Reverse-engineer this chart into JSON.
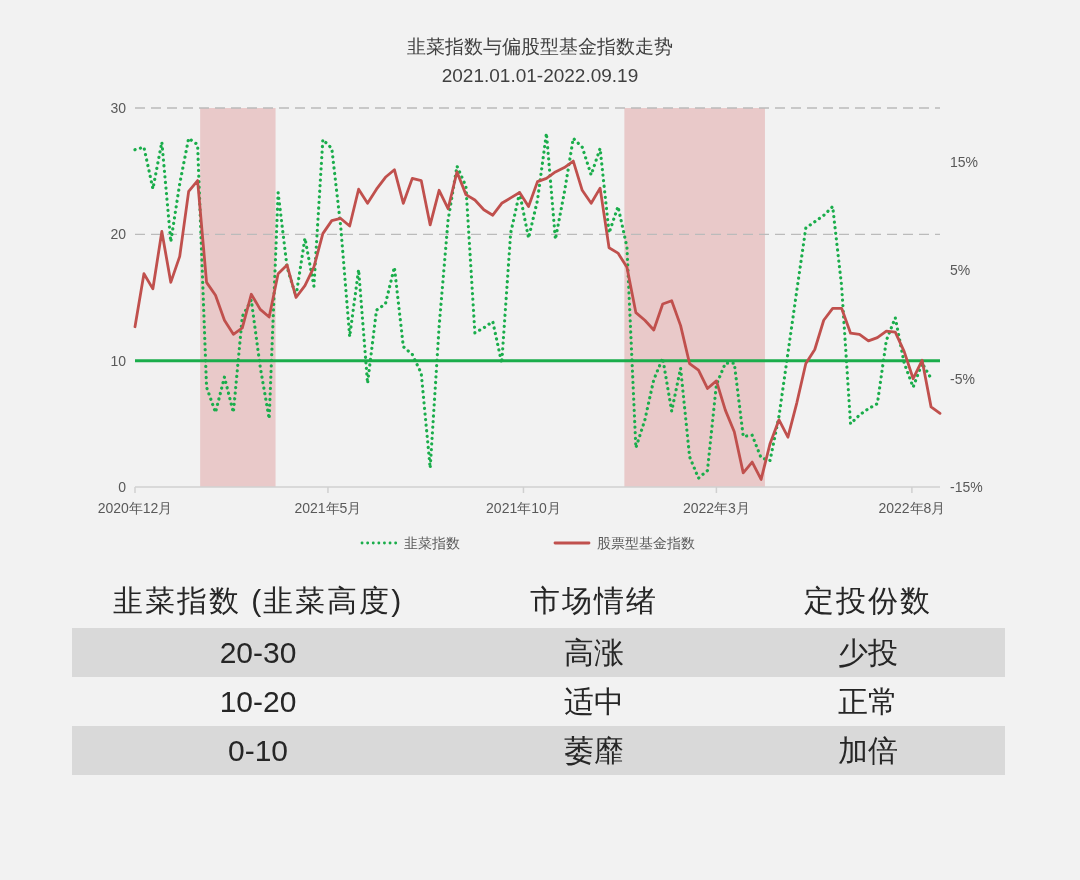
{
  "chart_data": [
    {
      "type": "line",
      "title": "韭菜指数与偏股型基金指数走势",
      "subtitle": "2021.01.01-2022.09.19",
      "x": [
        "2020-12-01",
        "2020-12-08",
        "2020-12-15",
        "2020-12-22",
        "2020-12-29",
        "2021-01-05",
        "2021-01-12",
        "2021-01-19",
        "2021-01-26",
        "2021-02-02",
        "2021-02-09",
        "2021-02-16",
        "2021-02-23",
        "2021-03-02",
        "2021-03-09",
        "2021-03-16",
        "2021-03-23",
        "2021-03-30",
        "2021-04-06",
        "2021-04-13",
        "2021-04-20",
        "2021-04-27",
        "2021-05-04",
        "2021-05-11",
        "2021-05-18",
        "2021-05-25",
        "2021-06-01",
        "2021-06-08",
        "2021-06-15",
        "2021-06-22",
        "2021-06-29",
        "2021-07-06",
        "2021-07-13",
        "2021-07-20",
        "2021-07-27",
        "2021-08-03",
        "2021-08-10",
        "2021-08-17",
        "2021-08-24",
        "2021-08-31",
        "2021-09-07",
        "2021-09-14",
        "2021-09-21",
        "2021-09-28",
        "2021-10-05",
        "2021-10-12",
        "2021-10-19",
        "2021-10-26",
        "2021-11-02",
        "2021-11-09",
        "2021-11-16",
        "2021-11-23",
        "2021-11-30",
        "2021-12-07",
        "2021-12-14",
        "2021-12-21",
        "2021-12-28",
        "2022-01-04",
        "2022-01-11",
        "2022-01-18",
        "2022-01-25",
        "2022-02-01",
        "2022-02-08",
        "2022-02-15",
        "2022-02-22",
        "2022-03-01",
        "2022-03-08",
        "2022-03-15",
        "2022-03-22",
        "2022-03-29",
        "2022-04-05",
        "2022-04-12",
        "2022-04-19",
        "2022-04-26",
        "2022-05-03",
        "2022-05-10",
        "2022-05-17",
        "2022-05-24",
        "2022-05-31",
        "2022-06-07",
        "2022-06-14",
        "2022-06-21",
        "2022-06-28",
        "2022-07-05",
        "2022-07-12",
        "2022-07-19",
        "2022-07-26",
        "2022-08-02",
        "2022-08-09",
        "2022-08-16",
        "2022-08-23"
      ],
      "series": [
        {
          "name": "韭菜指数",
          "type": "line",
          "color": "#1aad4b",
          "line_style": "dotted",
          "values": [
            26.7,
            26.9,
            23.6,
            27.3,
            19.4,
            24.0,
            27.6,
            27.1,
            7.9,
            5.9,
            8.7,
            5.9,
            13.5,
            14.8,
            9.5,
            5.4,
            23.3,
            17.4,
            15.1,
            19.7,
            15.9,
            27.5,
            26.8,
            20.6,
            11.9,
            17.2,
            8.2,
            14.0,
            14.5,
            17.4,
            11.1,
            10.5,
            9.0,
            1.5,
            12.7,
            21.1,
            25.4,
            23.8,
            12.2,
            12.6,
            13.1,
            9.8,
            20.1,
            23.3,
            19.7,
            22.7,
            28.0,
            19.6,
            23.3,
            27.6,
            26.9,
            24.7,
            26.8,
            20.1,
            22.2,
            19.0,
            3.1,
            5.3,
            8.5,
            10.2,
            6.0,
            9.4,
            2.4,
            0.7,
            1.3,
            8.1,
            9.8,
            9.8,
            4.0,
            4.1,
            2.3,
            2.1,
            5.6,
            10.6,
            15.6,
            20.5,
            21.0,
            21.5,
            22.2,
            15.9,
            5.0,
            5.7,
            6.2,
            6.6,
            11.6,
            13.4,
            9.8,
            7.9,
            9.8,
            8.6,
            null
          ]
        },
        {
          "name": "股票型基金指数",
          "type": "line",
          "color": "#c0504d",
          "line_style": "solid",
          "axis": "y2",
          "values": [
            -0.2,
            4.7,
            3.3,
            8.6,
            3.9,
            6.3,
            12.3,
            13.3,
            3.9,
            2.7,
            0.4,
            -0.9,
            -0.3,
            2.8,
            1.4,
            0.7,
            4.7,
            5.5,
            2.5,
            3.6,
            5.3,
            8.4,
            9.6,
            9.8,
            9.1,
            12.5,
            11.2,
            12.5,
            13.6,
            14.3,
            11.2,
            13.5,
            13.3,
            9.2,
            12.4,
            10.7,
            14.1,
            12.0,
            11.5,
            10.6,
            10.1,
            11.2,
            11.7,
            12.2,
            10.9,
            13.2,
            13.5,
            14.1,
            14.5,
            15.1,
            12.4,
            11.2,
            12.6,
            7.1,
            6.6,
            5.3,
            1.1,
            0.4,
            -0.5,
            1.9,
            2.2,
            -0.1,
            -3.6,
            -4.2,
            -5.9,
            -5.2,
            -7.9,
            -9.9,
            -13.7,
            -12.7,
            -14.3,
            -11.0,
            -8.8,
            -10.4,
            -7.2,
            -3.6,
            -2.3,
            0.4,
            1.5,
            1.5,
            -0.8,
            -0.9,
            -1.5,
            -1.2,
            -0.6,
            -0.7,
            -2.5,
            -5.0,
            -3.3,
            -7.6,
            -8.2
          ]
        }
      ],
      "xlim": [
        "2020-12-01",
        "2022-08-23"
      ],
      "xticks": [
        {
          "value": "2020-12-01",
          "label": "2020年12月"
        },
        {
          "value": "2021-05-01",
          "label": "2021年5月"
        },
        {
          "value": "2021-10-01",
          "label": "2021年10月"
        },
        {
          "value": "2022-03-01",
          "label": "2022年3月"
        },
        {
          "value": "2022-08-01",
          "label": "2022年8月"
        }
      ],
      "ylim": [
        0,
        30
      ],
      "yticks": [
        0,
        10,
        20,
        30
      ],
      "y2lim": [
        -15,
        20
      ],
      "y2ticks": [
        {
          "value": -15,
          "label": "-15%"
        },
        {
          "value": -5,
          "label": "-5%"
        },
        {
          "value": 5,
          "label": "5%"
        },
        {
          "value": 15,
          "label": "15%"
        }
      ],
      "ref_lines": [
        {
          "axis": "y",
          "value": 10,
          "color": "#1aad4b"
        },
        {
          "axis": "y",
          "value": 20,
          "color": "#bbbbbb",
          "line_style": "dashed"
        },
        {
          "axis": "y",
          "value": 30,
          "color": "#bbbbbb",
          "line_style": "dashed"
        }
      ],
      "bands": [
        {
          "axis": "x",
          "from": "2021-01-21",
          "to": "2021-03-21",
          "color": "#e8c4c4"
        },
        {
          "axis": "x",
          "from": "2021-12-19",
          "to": "2022-04-08",
          "color": "#e8c4c4"
        }
      ],
      "legend": "bottom"
    },
    {
      "type": "other",
      "categories": [
        "韭菜指数 (韭菜高度)",
        "市场情绪",
        "定投份数"
      ],
      "annotations": [
        "20-30",
        "高涨",
        "少投",
        "10-20",
        "适中",
        "正常",
        "0-10",
        "萎靡",
        "加倍"
      ]
    }
  ]
}
